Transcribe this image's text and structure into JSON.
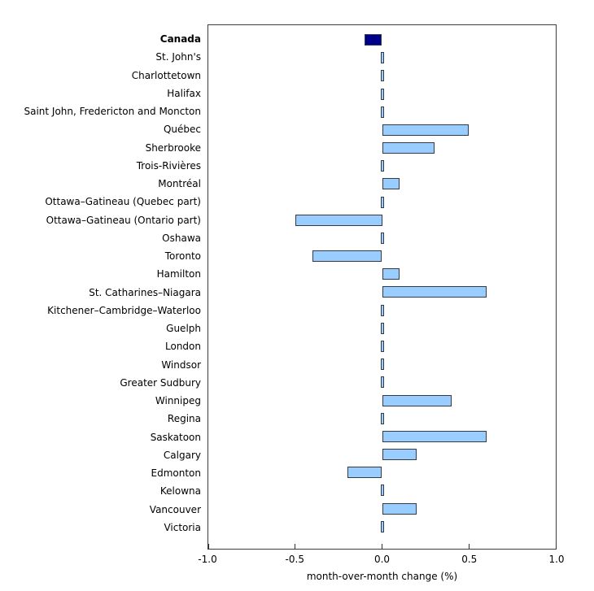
{
  "chart_data": {
    "type": "bar",
    "orientation": "horizontal",
    "title": "",
    "xlabel": "month-over-month change (%)",
    "ylabel": "",
    "xlim": [
      -1.0,
      1.0
    ],
    "xticks": [
      -1.0,
      -0.5,
      0.0,
      0.5,
      1.0
    ],
    "xtick_labels": [
      "-1.0",
      "-0.5",
      "0.0",
      "0.5",
      "1.0"
    ],
    "grid": false,
    "legend": "none",
    "highlight_category": "Canada",
    "colors": {
      "bar_fill": "#99CCFF",
      "highlight_fill": "#00008B",
      "bar_border": "#333B45",
      "frame": "#3C3C3C",
      "text": "#000000",
      "background": "#FFFFFF"
    },
    "categories": [
      "Canada",
      "St. John's",
      "Charlottetown",
      "Halifax",
      "Saint John, Fredericton and Moncton",
      "Québec",
      "Sherbrooke",
      "Trois-Rivières",
      "Montréal",
      "Ottawa–Gatineau (Quebec part)",
      "Ottawa–Gatineau (Ontario part)",
      "Oshawa",
      "Toronto",
      "Hamilton",
      "St. Catharines–Niagara",
      "Kitchener–Cambridge–Waterloo",
      "Guelph",
      "London",
      "Windsor",
      "Greater Sudbury",
      "Winnipeg",
      "Regina",
      "Saskatoon",
      "Calgary",
      "Edmonton",
      "Kelowna",
      "Vancouver",
      "Victoria"
    ],
    "values": [
      -0.1,
      0.0,
      0.0,
      0.0,
      0.0,
      0.5,
      0.3,
      0.0,
      0.1,
      0.0,
      -0.5,
      0.0,
      -0.4,
      0.1,
      0.6,
      0.0,
      0.0,
      0.0,
      0.0,
      0.0,
      0.4,
      0.0,
      0.6,
      0.2,
      -0.2,
      0.0,
      0.2,
      0.0
    ]
  }
}
